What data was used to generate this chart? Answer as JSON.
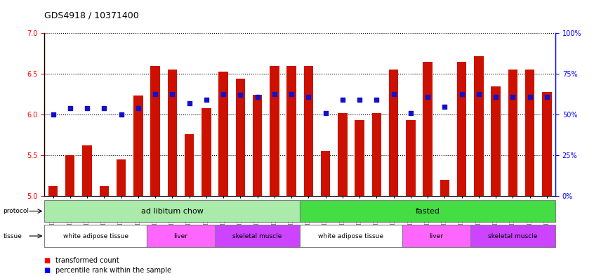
{
  "title": "GDS4918 / 10371400",
  "samples": [
    "GSM1131278",
    "GSM1131279",
    "GSM1131280",
    "GSM1131281",
    "GSM1131282",
    "GSM1131283",
    "GSM1131284",
    "GSM1131285",
    "GSM1131286",
    "GSM1131287",
    "GSM1131288",
    "GSM1131289",
    "GSM1131290",
    "GSM1131291",
    "GSM1131292",
    "GSM1131293",
    "GSM1131294",
    "GSM1131295",
    "GSM1131296",
    "GSM1131297",
    "GSM1131298",
    "GSM1131299",
    "GSM1131300",
    "GSM1131301",
    "GSM1131302",
    "GSM1131303",
    "GSM1131304",
    "GSM1131305",
    "GSM1131306",
    "GSM1131307"
  ],
  "red_values": [
    5.12,
    5.5,
    5.62,
    5.12,
    5.45,
    6.23,
    6.6,
    6.55,
    5.76,
    6.08,
    6.53,
    6.44,
    6.24,
    6.6,
    6.6,
    6.6,
    5.55,
    6.02,
    5.93,
    6.02,
    6.55,
    5.93,
    6.65,
    5.2,
    6.65,
    6.72,
    6.35,
    6.55,
    6.55,
    6.28
  ],
  "blue_values": [
    6.0,
    6.08,
    6.08,
    6.08,
    6.0,
    6.08,
    6.25,
    6.25,
    6.14,
    6.18,
    6.25,
    6.24,
    6.22,
    6.25,
    6.25,
    6.22,
    6.02,
    6.18,
    6.18,
    6.18,
    6.25,
    6.02,
    6.22,
    6.1,
    6.25,
    6.25,
    6.22,
    6.22,
    6.22,
    6.22
  ],
  "protocol_groups": [
    {
      "label": "ad libitum chow",
      "start": 0,
      "end": 15,
      "color": "#AAEAAA"
    },
    {
      "label": "fasted",
      "start": 15,
      "end": 30,
      "color": "#44DD44"
    }
  ],
  "tissue_groups": [
    {
      "label": "white adipose tissue",
      "start": 0,
      "end": 6,
      "color": "#ffffff"
    },
    {
      "label": "liver",
      "start": 6,
      "end": 10,
      "color": "#FF66FF"
    },
    {
      "label": "skeletal muscle",
      "start": 10,
      "end": 15,
      "color": "#CC44FF"
    },
    {
      "label": "white adipose tissue",
      "start": 15,
      "end": 21,
      "color": "#ffffff"
    },
    {
      "label": "liver",
      "start": 21,
      "end": 25,
      "color": "#FF66FF"
    },
    {
      "label": "skeletal muscle",
      "start": 25,
      "end": 30,
      "color": "#CC44FF"
    }
  ],
  "ylim_left": [
    5.0,
    7.0
  ],
  "ylim_right": [
    0,
    100
  ],
  "yticks_left": [
    5.0,
    5.5,
    6.0,
    6.5,
    7.0
  ],
  "yticks_right": [
    0,
    25,
    50,
    75,
    100
  ],
  "ytick_labels_right": [
    "0%",
    "25%",
    "50%",
    "75%",
    "100%"
  ],
  "bar_color": "#CC1100",
  "dot_color": "#1111CC",
  "bar_width": 0.55,
  "bar_bottom": 5.0,
  "dot_size": 14
}
